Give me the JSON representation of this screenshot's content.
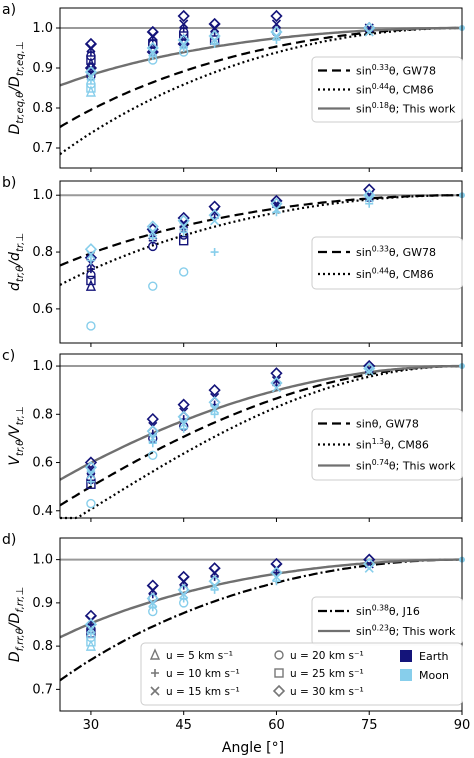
{
  "figure": {
    "xlabel": "Angle [°]",
    "xticks": [
      "30",
      "45",
      "60",
      "75",
      "90"
    ],
    "marker_legend": {
      "u_items": [
        {
          "label": "u = 5 km s⁻¹",
          "marker": "triangle"
        },
        {
          "label": "u = 20 km s⁻¹",
          "marker": "circle"
        },
        {
          "label": "u = 10 km s⁻¹",
          "marker": "plus"
        },
        {
          "label": "u = 25 km s⁻¹",
          "marker": "square"
        },
        {
          "label": "u = 15 km s⁻¹",
          "marker": "cross"
        },
        {
          "label": "u = 30 km s⁻¹",
          "marker": "diamond"
        }
      ],
      "bodies": [
        {
          "label": "Earth",
          "color": "#14147a"
        },
        {
          "label": "Moon",
          "color": "#87ceeb"
        }
      ]
    },
    "colors": {
      "earth": "#14147a",
      "moon": "#87ceeb",
      "reference": "#999999",
      "this_work": "#707070"
    }
  },
  "chart_data": [
    {
      "panel_label": "a)",
      "type": "scatter",
      "ylabel": "D_tr,eq,θ / D_tr,eq,⊥",
      "xlim": [
        25,
        90
      ],
      "ylim": [
        0.65,
        1.05
      ],
      "yticks": [
        "0.7",
        "0.8",
        "0.9",
        "1.0"
      ],
      "reference_line": 1.0,
      "curves": [
        {
          "label": "sin^0.33θ, GW78",
          "exponent": 0.33,
          "style": "dashed"
        },
        {
          "label": "sin^0.44θ, CM86",
          "exponent": 0.44,
          "style": "dotted"
        },
        {
          "label": "sin^0.18θ; This work",
          "exponent": 0.18,
          "style": "solid"
        }
      ],
      "points": {
        "earth": [
          {
            "x": 30,
            "y": [
              0.96,
              0.95,
              0.94,
              0.93,
              0.92,
              0.91,
              0.9,
              0.9,
              0.89,
              0.88
            ]
          },
          {
            "x": 40,
            "y": [
              0.99,
              0.98,
              0.97,
              0.96,
              0.96,
              0.95,
              0.94
            ]
          },
          {
            "x": 45,
            "y": [
              1.03,
              1.01,
              1.0,
              0.99,
              0.98,
              0.97,
              0.96
            ]
          },
          {
            "x": 50,
            "y": [
              1.01,
              1.0,
              0.99,
              0.98,
              0.97
            ]
          },
          {
            "x": 60,
            "y": [
              1.03,
              1.01,
              1.0,
              0.99
            ]
          },
          {
            "x": 75,
            "y": [
              1.0,
              1.0
            ]
          }
        ],
        "moon": [
          {
            "x": 30,
            "y": [
              0.89,
              0.88,
              0.87,
              0.86,
              0.85,
              0.84
            ]
          },
          {
            "x": 40,
            "y": [
              0.95,
              0.94,
              0.93,
              0.92
            ]
          },
          {
            "x": 45,
            "y": [
              0.97,
              0.96,
              0.95,
              0.94
            ]
          },
          {
            "x": 50,
            "y": [
              0.98,
              0.97,
              0.96
            ]
          },
          {
            "x": 60,
            "y": [
              0.99,
              0.98,
              0.97
            ]
          },
          {
            "x": 75,
            "y": [
              1.0,
              0.99
            ]
          }
        ]
      }
    },
    {
      "panel_label": "b)",
      "type": "scatter",
      "ylabel": "d_tr,θ / d_tr,⊥",
      "xlim": [
        25,
        90
      ],
      "ylim": [
        0.48,
        1.05
      ],
      "yticks": [
        "0.6",
        "0.8",
        "1.0"
      ],
      "reference_line": 1.0,
      "curves": [
        {
          "label": "sin^0.33θ, GW78",
          "exponent": 0.33,
          "style": "dashed"
        },
        {
          "label": "sin^0.44θ, CM86",
          "exponent": 0.44,
          "style": "dotted"
        }
      ],
      "points": {
        "earth": [
          {
            "x": 30,
            "y": [
              0.78,
              0.76,
              0.74,
              0.72,
              0.7,
              0.68
            ]
          },
          {
            "x": 40,
            "y": [
              0.88,
              0.86,
              0.84,
              0.82
            ]
          },
          {
            "x": 45,
            "y": [
              0.92,
              0.9,
              0.88,
              0.86,
              0.84
            ]
          },
          {
            "x": 50,
            "y": [
              0.96,
              0.94,
              0.92
            ]
          },
          {
            "x": 60,
            "y": [
              0.98,
              0.97,
              0.96
            ]
          },
          {
            "x": 75,
            "y": [
              1.02,
              1.0,
              0.98
            ]
          }
        ],
        "moon": [
          {
            "x": 30,
            "y": [
              0.81,
              0.79,
              0.77,
              0.54
            ]
          },
          {
            "x": 40,
            "y": [
              0.89,
              0.87,
              0.85,
              0.68
            ]
          },
          {
            "x": 45,
            "y": [
              0.91,
              0.89,
              0.87,
              0.73
            ]
          },
          {
            "x": 50,
            "y": [
              0.93,
              0.91,
              0.8
            ]
          },
          {
            "x": 60,
            "y": [
              0.97,
              0.95,
              0.94
            ]
          },
          {
            "x": 75,
            "y": [
              1.0,
              0.99,
              0.97
            ]
          }
        ]
      }
    },
    {
      "panel_label": "c)",
      "type": "scatter",
      "ylabel": "V_tr,θ / V_tr,⊥",
      "xlim": [
        25,
        90
      ],
      "ylim": [
        0.37,
        1.05
      ],
      "yticks": [
        "0.4",
        "0.6",
        "0.8",
        "1.0"
      ],
      "reference_line": 1.0,
      "curves": [
        {
          "label": "sinθ, GW78",
          "exponent": 1.0,
          "style": "dashed"
        },
        {
          "label": "sin^1.3θ, CM86",
          "exponent": 1.3,
          "style": "dotted"
        },
        {
          "label": "sin^0.74θ; This work",
          "exponent": 0.74,
          "style": "solid"
        }
      ],
      "points": {
        "earth": [
          {
            "x": 30,
            "y": [
              0.6,
              0.57,
              0.55,
              0.53,
              0.51
            ]
          },
          {
            "x": 40,
            "y": [
              0.78,
              0.75,
              0.72,
              0.7
            ]
          },
          {
            "x": 45,
            "y": [
              0.84,
              0.81,
              0.78,
              0.75
            ]
          },
          {
            "x": 50,
            "y": [
              0.9,
              0.87,
              0.84
            ]
          },
          {
            "x": 60,
            "y": [
              0.97,
              0.94,
              0.92
            ]
          },
          {
            "x": 75,
            "y": [
              1.0,
              0.99
            ]
          }
        ],
        "moon": [
          {
            "x": 30,
            "y": [
              0.58,
              0.55,
              0.52,
              0.43
            ]
          },
          {
            "x": 40,
            "y": [
              0.73,
              0.7,
              0.68,
              0.63
            ]
          },
          {
            "x": 45,
            "y": [
              0.79,
              0.76,
              0.74
            ]
          },
          {
            "x": 50,
            "y": [
              0.85,
              0.82,
              0.8
            ]
          },
          {
            "x": 60,
            "y": [
              0.93,
              0.91
            ]
          },
          {
            "x": 75,
            "y": [
              0.99,
              0.98
            ]
          }
        ]
      }
    },
    {
      "panel_label": "d)",
      "type": "scatter",
      "ylabel": "D_f,rr,θ / D_f,rr,⊥",
      "xlim": [
        25,
        90
      ],
      "ylim": [
        0.65,
        1.05
      ],
      "yticks": [
        "0.7",
        "0.8",
        "0.9",
        "1.0"
      ],
      "reference_line": 1.0,
      "curves": [
        {
          "label": "sin^0.38θ, J16",
          "exponent": 0.38,
          "style": "dashdot"
        },
        {
          "label": "sin^0.23θ; This work",
          "exponent": 0.23,
          "style": "solid"
        }
      ],
      "points": {
        "earth": [
          {
            "x": 30,
            "y": [
              0.87,
              0.86,
              0.85,
              0.84,
              0.83
            ]
          },
          {
            "x": 40,
            "y": [
              0.94,
              0.93,
              0.92,
              0.91
            ]
          },
          {
            "x": 45,
            "y": [
              0.96,
              0.95,
              0.94,
              0.93
            ]
          },
          {
            "x": 50,
            "y": [
              0.98,
              0.97,
              0.96
            ]
          },
          {
            "x": 60,
            "y": [
              0.99,
              0.98,
              0.97
            ]
          },
          {
            "x": 75,
            "y": [
              1.0,
              0.99
            ]
          }
        ],
        "moon": [
          {
            "x": 30,
            "y": [
              0.85,
              0.84,
              0.83,
              0.82,
              0.81,
              0.8
            ]
          },
          {
            "x": 40,
            "y": [
              0.91,
              0.9,
              0.89,
              0.88
            ]
          },
          {
            "x": 45,
            "y": [
              0.93,
              0.92,
              0.91,
              0.9
            ]
          },
          {
            "x": 50,
            "y": [
              0.95,
              0.94,
              0.93
            ]
          },
          {
            "x": 60,
            "y": [
              0.97,
              0.96,
              0.95
            ]
          },
          {
            "x": 75,
            "y": [
              0.99,
              0.98
            ]
          }
        ]
      }
    }
  ]
}
